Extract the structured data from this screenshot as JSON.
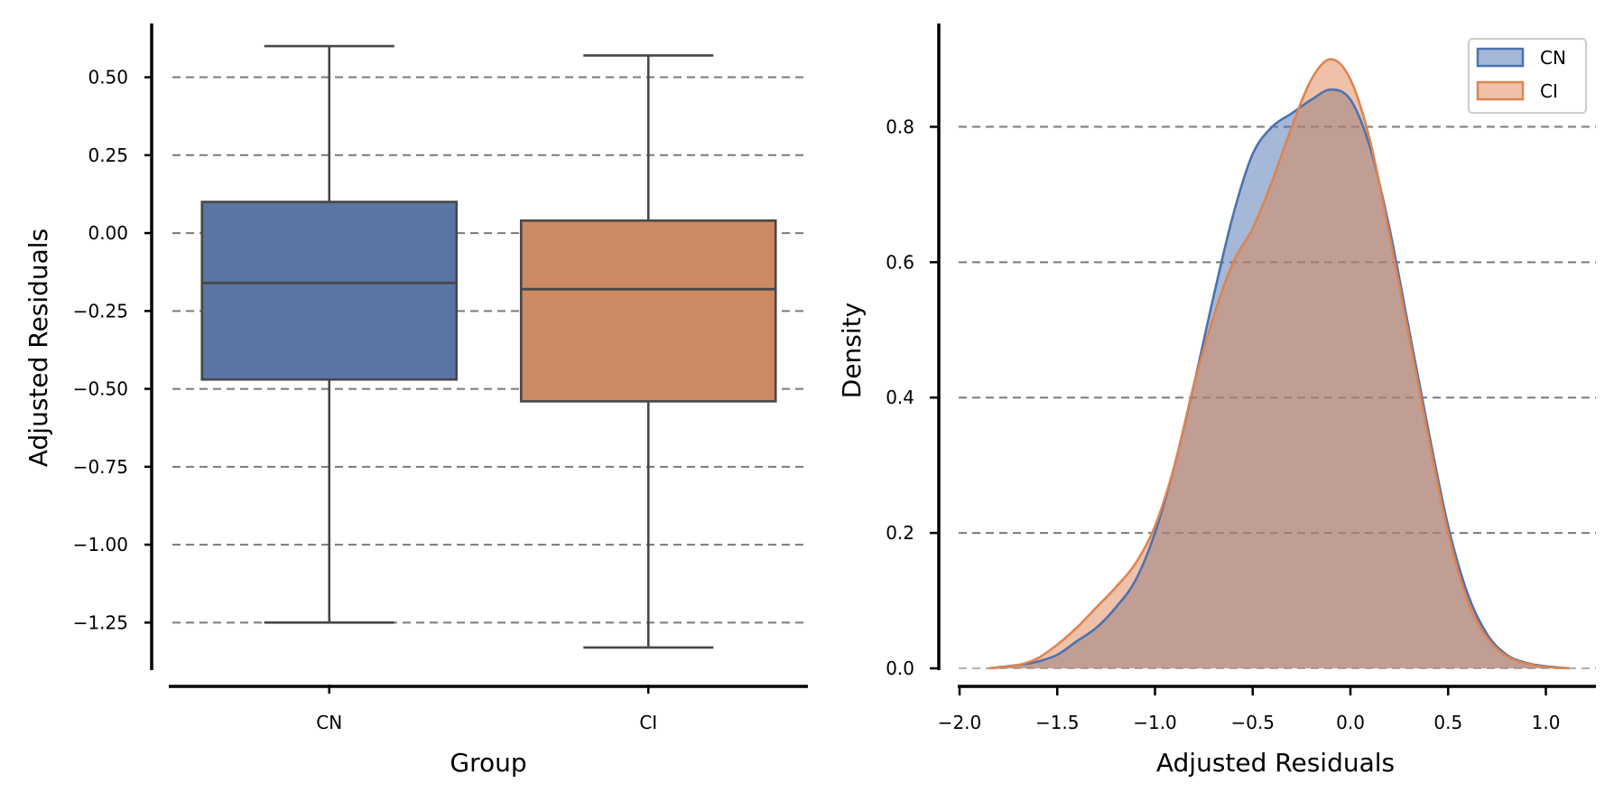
{
  "chart_data": [
    {
      "type": "box",
      "xlabel": "Group",
      "ylabel": "Adjusted Residuals",
      "ylim": [
        -1.42,
        0.69
      ],
      "yticks": [
        0.5,
        0.25,
        0.0,
        -0.25,
        -0.5,
        -0.75,
        -1.0,
        -1.25
      ],
      "ytick_labels": [
        "0.50",
        "0.25",
        "0.00",
        "−0.25",
        "−0.50",
        "−0.75",
        "−1.00",
        "−1.25"
      ],
      "grid": "horizontal dashed",
      "categories": [
        "CN",
        "CI"
      ],
      "boxes": [
        {
          "name": "CN",
          "whisker_low": -1.25,
          "q1": -0.47,
          "median": -0.16,
          "q3": 0.1,
          "whisker_high": 0.6,
          "color": "#5975a4"
        },
        {
          "name": "CI",
          "whisker_low": -1.33,
          "q1": -0.54,
          "median": -0.18,
          "q3": 0.04,
          "whisker_high": 0.57,
          "color": "#cc8963"
        }
      ]
    },
    {
      "type": "area",
      "xlabel": "Adjusted Residuals",
      "ylabel": "Density",
      "xlim": [
        -2.0,
        1.15
      ],
      "ylim": [
        0.0,
        0.95
      ],
      "xticks": [
        -2.0,
        -1.5,
        -1.0,
        -0.5,
        0.0,
        0.5,
        1.0
      ],
      "xtick_labels": [
        "−2.0",
        "−1.5",
        "−1.0",
        "−0.5",
        "0.0",
        "0.5",
        "1.0"
      ],
      "yticks": [
        0.0,
        0.2,
        0.4,
        0.6,
        0.8
      ],
      "ytick_labels": [
        "0.0",
        "0.2",
        "0.4",
        "0.6",
        "0.8"
      ],
      "grid": "horizontal dashed",
      "legend": "top-right",
      "series": [
        {
          "name": "CN",
          "color": "#4c72b0",
          "x": [
            -1.85,
            -1.7,
            -1.6,
            -1.5,
            -1.4,
            -1.3,
            -1.2,
            -1.1,
            -1.0,
            -0.9,
            -0.8,
            -0.7,
            -0.6,
            -0.5,
            -0.4,
            -0.3,
            -0.2,
            -0.1,
            0.0,
            0.1,
            0.2,
            0.3,
            0.4,
            0.5,
            0.6,
            0.7,
            0.8,
            0.9,
            1.0,
            1.12
          ],
          "y": [
            0.0,
            0.005,
            0.01,
            0.02,
            0.04,
            0.06,
            0.09,
            0.13,
            0.2,
            0.3,
            0.42,
            0.55,
            0.67,
            0.76,
            0.8,
            0.82,
            0.84,
            0.855,
            0.84,
            0.77,
            0.65,
            0.5,
            0.35,
            0.21,
            0.11,
            0.05,
            0.02,
            0.008,
            0.003,
            0.0
          ]
        },
        {
          "name": "CI",
          "color": "#dd8452",
          "x": [
            -1.85,
            -1.7,
            -1.6,
            -1.5,
            -1.4,
            -1.3,
            -1.2,
            -1.1,
            -1.0,
            -0.9,
            -0.8,
            -0.7,
            -0.6,
            -0.5,
            -0.4,
            -0.3,
            -0.2,
            -0.1,
            0.0,
            0.1,
            0.2,
            0.3,
            0.4,
            0.5,
            0.6,
            0.7,
            0.8,
            0.9,
            1.0,
            1.12
          ],
          "y": [
            0.0,
            0.005,
            0.015,
            0.035,
            0.06,
            0.09,
            0.12,
            0.155,
            0.21,
            0.3,
            0.42,
            0.52,
            0.6,
            0.65,
            0.72,
            0.8,
            0.87,
            0.9,
            0.87,
            0.78,
            0.64,
            0.49,
            0.34,
            0.2,
            0.1,
            0.045,
            0.018,
            0.007,
            0.002,
            0.0
          ]
        }
      ]
    }
  ]
}
